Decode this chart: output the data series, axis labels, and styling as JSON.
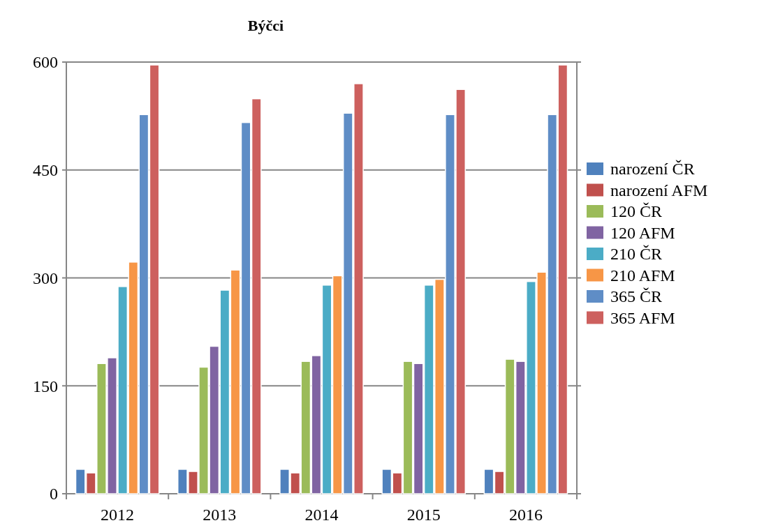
{
  "chart_data": {
    "type": "bar",
    "title": "Býčci",
    "categories": [
      "2012",
      "2013",
      "2014",
      "2015",
      "2016"
    ],
    "series": [
      {
        "name": "narození ČR",
        "color": "#4f81bd",
        "values": [
          34,
          34,
          34,
          34,
          34
        ]
      },
      {
        "name": "narození AFM",
        "color": "#c0504d",
        "values": [
          29,
          31,
          29,
          29,
          31
        ]
      },
      {
        "name": "120 ČR",
        "color": "#9bbb59",
        "values": [
          181,
          176,
          184,
          184,
          187
        ]
      },
      {
        "name": "120 AFM",
        "color": "#8064a2",
        "values": [
          189,
          205,
          192,
          181,
          184
        ]
      },
      {
        "name": "210 ČR",
        "color": "#4bacc6",
        "values": [
          288,
          283,
          290,
          290,
          295
        ]
      },
      {
        "name": "210 AFM",
        "color": "#f79646",
        "values": [
          322,
          311,
          303,
          298,
          308
        ]
      },
      {
        "name": "365 ČR",
        "color": "#5f8dc6",
        "values": [
          527,
          516,
          529,
          527,
          527
        ]
      },
      {
        "name": "365 AFM",
        "color": "#cd605e",
        "values": [
          596,
          549,
          570,
          562,
          596
        ]
      }
    ],
    "ylim": [
      0,
      600
    ],
    "yticks": [
      0,
      150,
      300,
      450,
      600
    ],
    "grid": "y",
    "legend": "right"
  }
}
